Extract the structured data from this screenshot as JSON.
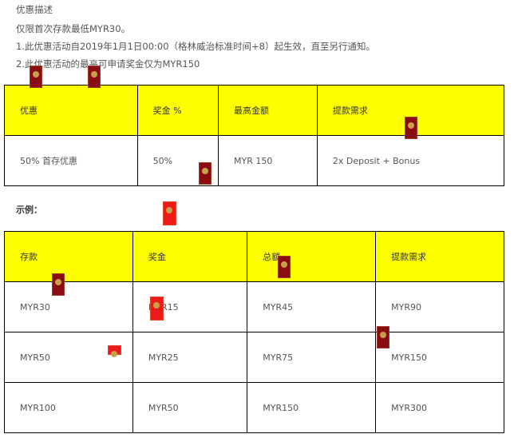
{
  "desc": {
    "title": "优惠描述",
    "line0": "仅限首次存款最低MYR30。",
    "line1": "1.此优惠活动自2019年1月1日00:00（格林威治标准时间+8）起生效，直至另行通知。",
    "line2": "2.此优惠活动的最高可申请奖金仅为MYR150"
  },
  "promo_table": {
    "headers": [
      "优惠",
      "奖金 %",
      "最高金额",
      "提款需求"
    ],
    "rows": [
      [
        "50% 首存优惠",
        "50%",
        "MYR 150",
        "2x Deposit + Bonus"
      ]
    ]
  },
  "example_label": "示例：",
  "example_table": {
    "headers": [
      "存款",
      "奖金",
      "总额",
      "提款需求"
    ],
    "rows": [
      [
        "MYR30",
        "MYR15",
        "MYR45",
        "MYR90"
      ],
      [
        "MYR50",
        "MYR25",
        "MYR75",
        "MYR150"
      ],
      [
        "MYR100",
        "MYR50",
        "MYR150",
        "MYR300"
      ]
    ]
  }
}
